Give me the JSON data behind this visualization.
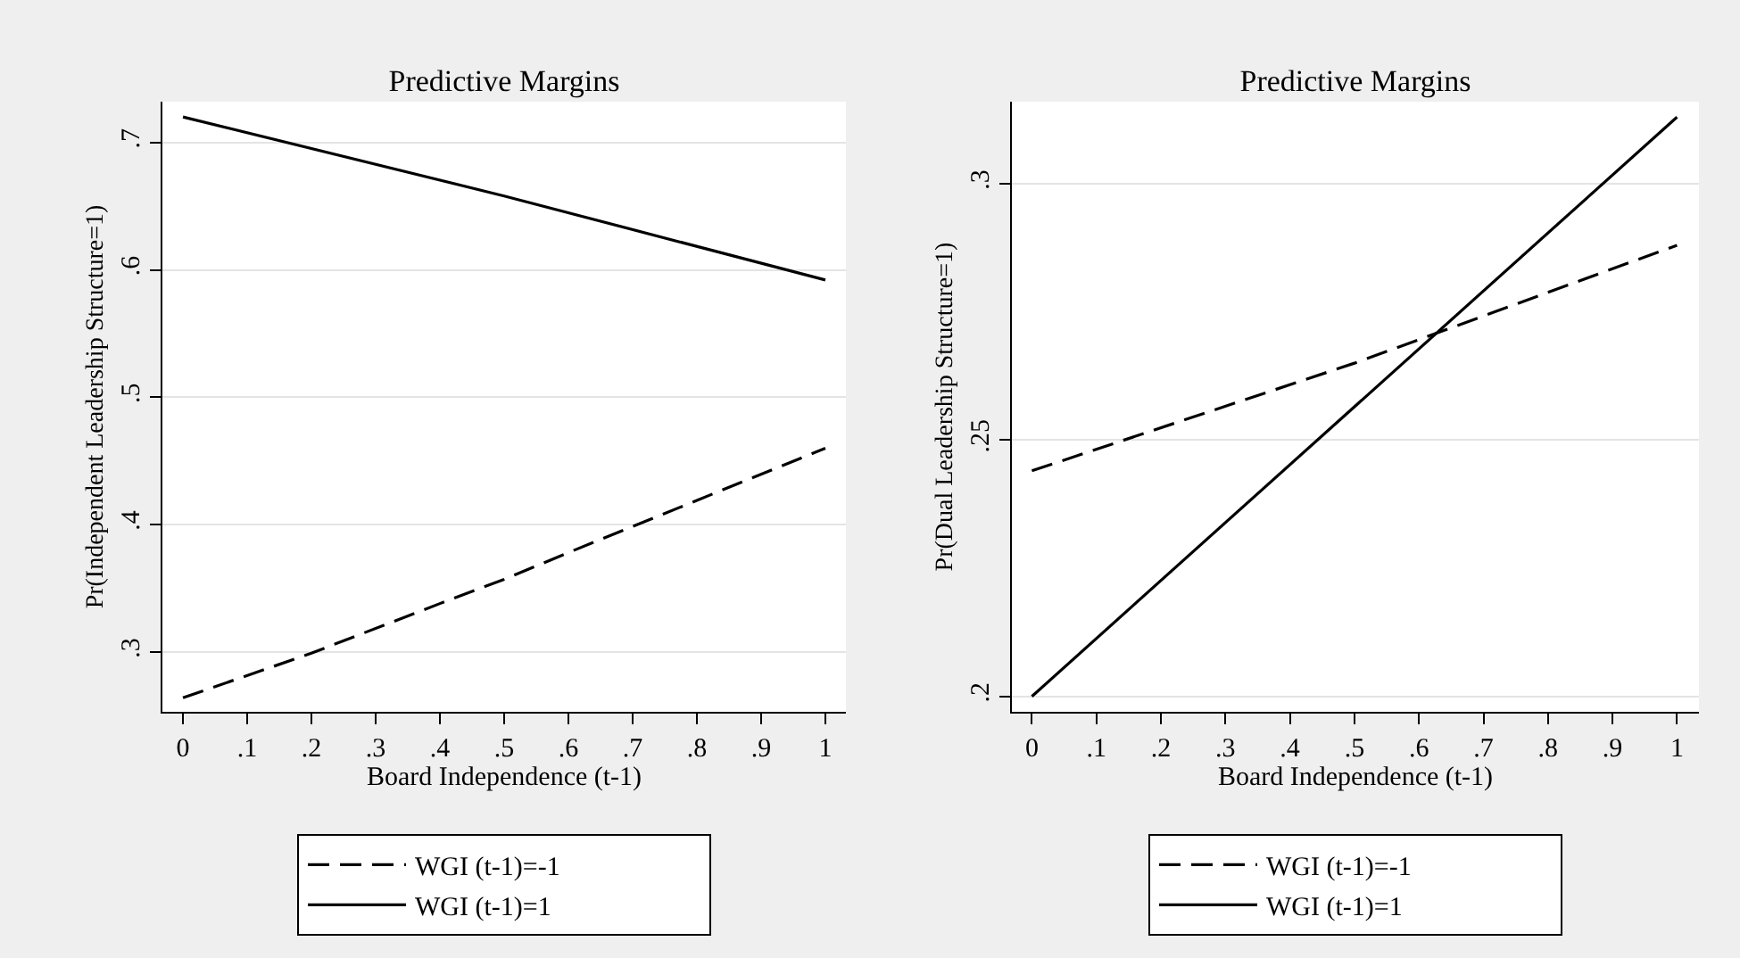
{
  "chart_data": [
    {
      "type": "line",
      "title": "Predictive Margins",
      "xlabel": "Board Independence (t-1)",
      "ylabel": "Pr(Independent Leadership Structure=1)",
      "xlim": [
        -0.032,
        1.032
      ],
      "xticks": [
        {
          "value": 0,
          "label": "0"
        },
        {
          "value": 0.1,
          "label": ".1"
        },
        {
          "value": 0.2,
          "label": ".2"
        },
        {
          "value": 0.3,
          "label": ".3"
        },
        {
          "value": 0.4,
          "label": ".4"
        },
        {
          "value": 0.5,
          "label": ".5"
        },
        {
          "value": 0.6,
          "label": ".6"
        },
        {
          "value": 0.7,
          "label": ".7"
        },
        {
          "value": 0.8,
          "label": ".8"
        },
        {
          "value": 0.9,
          "label": ".9"
        },
        {
          "value": 1,
          "label": "1"
        }
      ],
      "ylim": [
        0.253,
        0.732
      ],
      "yticks": [
        {
          "value": 0.3,
          "label": ".3"
        },
        {
          "value": 0.4,
          "label": ".4"
        },
        {
          "value": 0.5,
          "label": ".5"
        },
        {
          "value": 0.6,
          "label": ".6"
        },
        {
          "value": 0.7,
          "label": ".7"
        }
      ],
      "grid": "y",
      "legend": "bottom",
      "series": [
        {
          "name": "WGI (t-1)=-1",
          "color": "#000000",
          "line_style": "dashed",
          "x": [
            0,
            0.2,
            0.4,
            0.5,
            0.6,
            0.8,
            1
          ],
          "values": [
            0.264,
            0.299,
            0.338,
            0.357,
            0.378,
            0.419,
            0.46
          ]
        },
        {
          "name": "WGI (t-1)=1",
          "color": "#000000",
          "line_style": "solid",
          "x": [
            0,
            0.5,
            1
          ],
          "values": [
            0.72,
            0.658,
            0.592
          ]
        }
      ]
    },
    {
      "type": "line",
      "title": "Predictive Margins",
      "xlabel": "Board Independence (t-1)",
      "ylabel": "Pr(Dual Leadership Structure=1)",
      "xlim": [
        -0.031,
        1.034
      ],
      "xticks": [
        {
          "value": 0,
          "label": "0"
        },
        {
          "value": 0.1,
          "label": ".1"
        },
        {
          "value": 0.2,
          "label": ".2"
        },
        {
          "value": 0.3,
          "label": ".3"
        },
        {
          "value": 0.4,
          "label": ".4"
        },
        {
          "value": 0.5,
          "label": ".5"
        },
        {
          "value": 0.6,
          "label": ".6"
        },
        {
          "value": 0.7,
          "label": ".7"
        },
        {
          "value": 0.8,
          "label": ".8"
        },
        {
          "value": 0.9,
          "label": ".9"
        },
        {
          "value": 1,
          "label": "1"
        }
      ],
      "ylim": [
        0.197,
        0.316
      ],
      "yticks": [
        {
          "value": 0.2,
          "label": ".2"
        },
        {
          "value": 0.25,
          "label": ".25"
        },
        {
          "value": 0.3,
          "label": ".3"
        }
      ],
      "grid": "y",
      "legend": "bottom",
      "series": [
        {
          "name": "WGI (t-1)=-1",
          "color": "#000000",
          "line_style": "dashed",
          "x": [
            0,
            0.5,
            1
          ],
          "values": [
            0.244,
            0.265,
            0.288
          ]
        },
        {
          "name": "WGI (t-1)=1",
          "color": "#000000",
          "line_style": "solid",
          "x": [
            0,
            1
          ],
          "values": [
            0.2,
            0.313
          ]
        }
      ]
    }
  ]
}
